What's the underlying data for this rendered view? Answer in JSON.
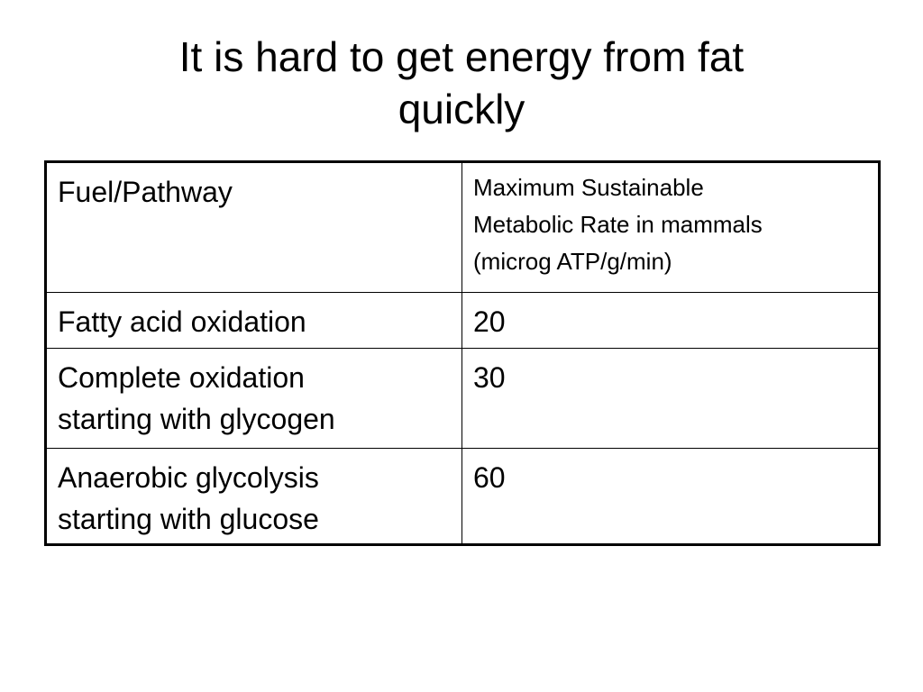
{
  "slide": {
    "title_lines": [
      "It is hard to get energy from fat",
      "quickly"
    ]
  },
  "table": {
    "header": {
      "col1": "Fuel/Pathway",
      "col2_lines": [
        "Maximum Sustainable",
        "Metabolic Rate in mammals",
        "(microg ATP/g/min)"
      ]
    },
    "rows": [
      {
        "pathway_lines": [
          "Fatty acid oxidation"
        ],
        "rate": "20"
      },
      {
        "pathway_lines": [
          "Complete oxidation",
          "starting with glycogen"
        ],
        "rate": "30"
      },
      {
        "pathway_lines": [
          "Anaerobic glycolysis",
          "starting with glucose"
        ],
        "rate": "60"
      }
    ]
  }
}
